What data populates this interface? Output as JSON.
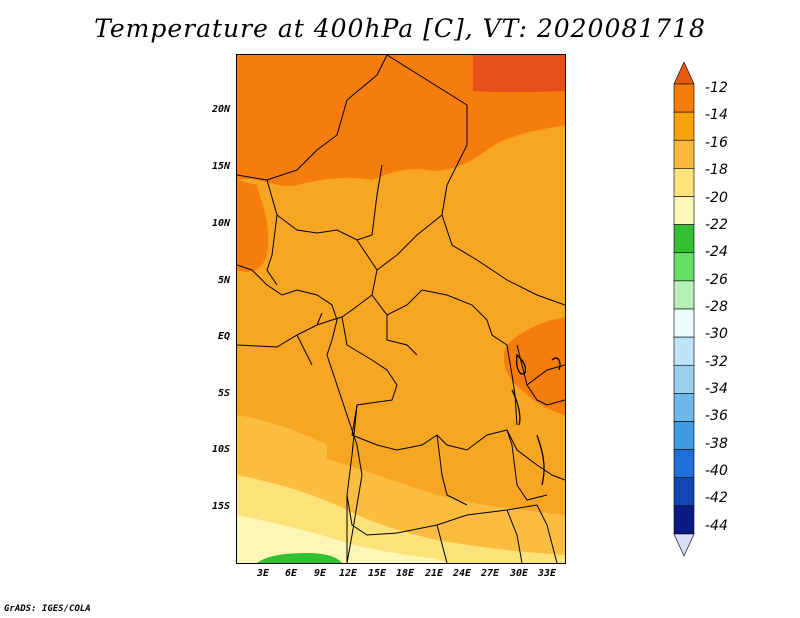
{
  "title": "Temperature at 400hPa [C], VT: 2020081718",
  "credit": "GrADS: IGES/COLA",
  "map": {
    "lat_labels": [
      "20N",
      "15N",
      "10N",
      "5N",
      "EQ",
      "5S",
      "10S",
      "15S"
    ],
    "lon_labels": [
      "3E",
      "6E",
      "9E",
      "12E",
      "15E",
      "18E",
      "21E",
      "24E",
      "27E",
      "30E",
      "33E"
    ]
  },
  "colorbar": {
    "labels": [
      "-12",
      "-14",
      "-16",
      "-18",
      "-20",
      "-22",
      "-24",
      "-26",
      "-28",
      "-30",
      "-32",
      "-34",
      "-36",
      "-38",
      "-40",
      "-42",
      "-44"
    ],
    "colors": [
      "#e85a10",
      "#f47d0e",
      "#f6a20e",
      "#fbb83c",
      "#fde27a",
      "#fdf6b6",
      "#33c133",
      "#66dd66",
      "#b8f0b8",
      "#eafcfa",
      "#bfe3f8",
      "#9ccfee",
      "#6db8ea",
      "#3f9be2",
      "#1f70d6",
      "#1247b5",
      "#0a1c84",
      "#dcdcf4"
    ]
  }
}
